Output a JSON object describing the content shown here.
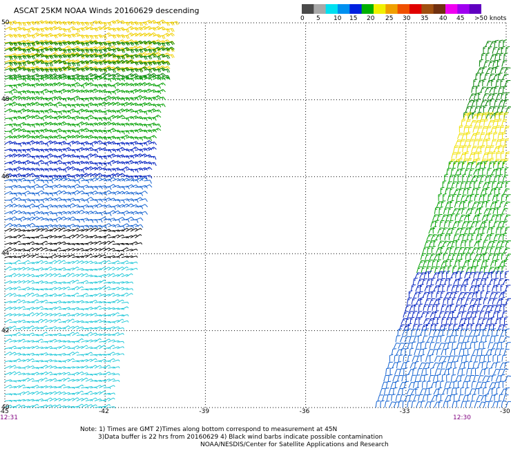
{
  "title": "ASCAT 25KM NOAA Winds 20160629 descending",
  "legend": {
    "labels": [
      "0",
      "5",
      "10",
      "15",
      "20",
      "25",
      "30",
      "35",
      "40",
      "45",
      ">50 knots"
    ],
    "colors": [
      "#4a4a4a",
      "#a8a8a8",
      "#00e0f0",
      "#0090f0",
      "#0020e0",
      "#00b000",
      "#f0f000",
      "#f0a000",
      "#f05000",
      "#e00000",
      "#a05010",
      "#703010",
      "#f000f0",
      "#a000f0",
      "#6000c0"
    ]
  },
  "chart_data": {
    "type": "scatter",
    "title": "ASCAT 25KM NOAA Winds 20160629 descending",
    "x_ticks": [
      "-45",
      "-42",
      "-39",
      "-36",
      "-33",
      "-30"
    ],
    "y_ticks": [
      "50",
      "48",
      "46",
      "44",
      "42",
      "40"
    ],
    "xlim": [
      -45,
      -30
    ],
    "ylim": [
      40,
      50
    ],
    "grid": true,
    "swaths": [
      {
        "name": "west",
        "time_label": "12:31",
        "lon_edge_north": -40.0,
        "lon_edge_south": -41.9
      },
      {
        "name": "east",
        "time_label": "12:30",
        "lon_edge_north": -30.4,
        "lon_edge_south": -33.9
      }
    ],
    "wind_bands": [
      {
        "swath": "west",
        "lat_max": 50.0,
        "lat_min": 48.8,
        "color": "#f0d000",
        "speed_kt": 22
      },
      {
        "swath": "west",
        "lat_max": 49.6,
        "lat_min": 48.6,
        "color": "#008000",
        "speed_kt": 18
      },
      {
        "swath": "west",
        "lat_max": 48.6,
        "lat_min": 47.0,
        "color": "#00a000",
        "speed_kt": 17
      },
      {
        "swath": "west",
        "lat_max": 47.0,
        "lat_min": 46.0,
        "color": "#0020c0",
        "speed_kt": 13
      },
      {
        "swath": "west",
        "lat_max": 46.0,
        "lat_min": 44.7,
        "color": "#1060d0",
        "speed_kt": 10
      },
      {
        "swath": "west",
        "lat_max": 44.7,
        "lat_min": 43.9,
        "color": "#000000",
        "speed_kt": 5
      },
      {
        "swath": "west",
        "lat_max": 43.9,
        "lat_min": 40.0,
        "color": "#20c8d8",
        "speed_kt": 7
      },
      {
        "swath": "east",
        "lat_max": 49.5,
        "lat_min": 47.5,
        "color": "#008000",
        "speed_kt": 17
      },
      {
        "swath": "east",
        "lat_max": 47.5,
        "lat_min": 46.3,
        "color": "#f0e000",
        "speed_kt": 21
      },
      {
        "swath": "east",
        "lat_max": 46.3,
        "lat_min": 43.5,
        "color": "#00a000",
        "speed_kt": 17
      },
      {
        "swath": "east",
        "lat_max": 43.5,
        "lat_min": 42.0,
        "color": "#0020c0",
        "speed_kt": 13
      },
      {
        "swath": "east",
        "lat_max": 42.0,
        "lat_min": 40.0,
        "color": "#1060d0",
        "speed_kt": 10
      }
    ]
  },
  "notes": {
    "line1": "Note: 1) Times are GMT 2)Times along bottom correspond to measurement at 45N",
    "line2": "3)Data buffer is 22 hrs from 20160629 4) Black wind barbs indicate possible contamination",
    "line3": "NOAA/NESDIS/Center for Satellite Applications and Research"
  }
}
